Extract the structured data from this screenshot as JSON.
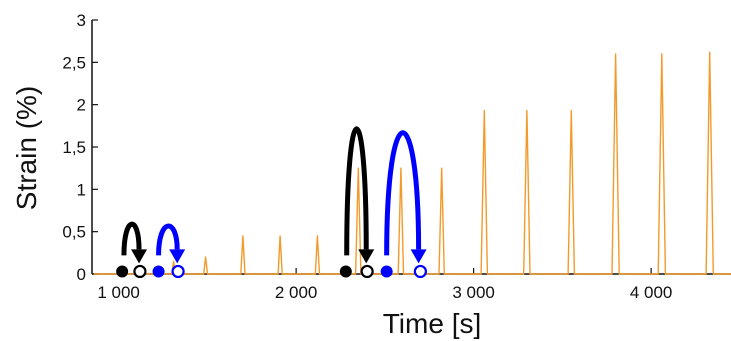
{
  "chart_data": {
    "type": "line",
    "xlabel": "Time [s]",
    "ylabel": "Strain (%)",
    "xlim": [
      850,
      4450
    ],
    "ylim": [
      0,
      3
    ],
    "x_ticks": [
      1000,
      2000,
      3000,
      4000
    ],
    "x_tick_labels": [
      "1 000",
      "2 000",
      "3 000",
      "4 000"
    ],
    "y_ticks": [
      0,
      0.5,
      1,
      1.5,
      2,
      2.5,
      3
    ],
    "y_tick_labels": [
      "0",
      "0,5",
      "1",
      "1,5",
      "2",
      "2,5",
      "3"
    ],
    "grid": false,
    "legend": "none",
    "series": [
      {
        "color": "#f39a2b",
        "peaks": [
          {
            "t": 1130,
            "strain": 0.1
          },
          {
            "t": 1310,
            "strain": 0.15
          },
          {
            "t": 1490,
            "strain": 0.2
          },
          {
            "t": 1700,
            "strain": 0.45
          },
          {
            "t": 1910,
            "strain": 0.45
          },
          {
            "t": 2120,
            "strain": 0.45
          },
          {
            "t": 2350,
            "strain": 1.25
          },
          {
            "t": 2590,
            "strain": 1.25
          },
          {
            "t": 2820,
            "strain": 1.25
          },
          {
            "t": 3060,
            "strain": 1.93
          },
          {
            "t": 3300,
            "strain": 1.93
          },
          {
            "t": 3550,
            "strain": 1.93
          },
          {
            "t": 3800,
            "strain": 2.6
          },
          {
            "t": 4060,
            "strain": 2.6
          },
          {
            "t": 4330,
            "strain": 2.62
          }
        ]
      }
    ],
    "annotations": {
      "markers": [
        {
          "t": 1020,
          "strain": 0.03,
          "fill": "filled",
          "color": "#000000"
        },
        {
          "t": 1120,
          "strain": 0.03,
          "fill": "hollow",
          "color": "#000000"
        },
        {
          "t": 1225,
          "strain": 0.03,
          "fill": "filled",
          "color": "#0000ff"
        },
        {
          "t": 1335,
          "strain": 0.03,
          "fill": "hollow",
          "color": "#0000ff"
        },
        {
          "t": 2280,
          "strain": 0.03,
          "fill": "filled",
          "color": "#000000"
        },
        {
          "t": 2400,
          "strain": 0.03,
          "fill": "hollow",
          "color": "#000000"
        },
        {
          "t": 2510,
          "strain": 0.03,
          "fill": "filled",
          "color": "#0000ff"
        },
        {
          "t": 2700,
          "strain": 0.03,
          "fill": "hollow",
          "color": "#0000ff"
        }
      ],
      "arrows": [
        {
          "from": 1030,
          "to": 1115,
          "top": 0.7,
          "color": "#000000"
        },
        {
          "from": 1225,
          "to": 1330,
          "top": 0.67,
          "color": "#0000ff"
        },
        {
          "from": 2285,
          "to": 2395,
          "top": 2.2,
          "color": "#000000"
        },
        {
          "from": 2510,
          "to": 2690,
          "top": 2.14,
          "color": "#0000ff"
        }
      ]
    }
  }
}
